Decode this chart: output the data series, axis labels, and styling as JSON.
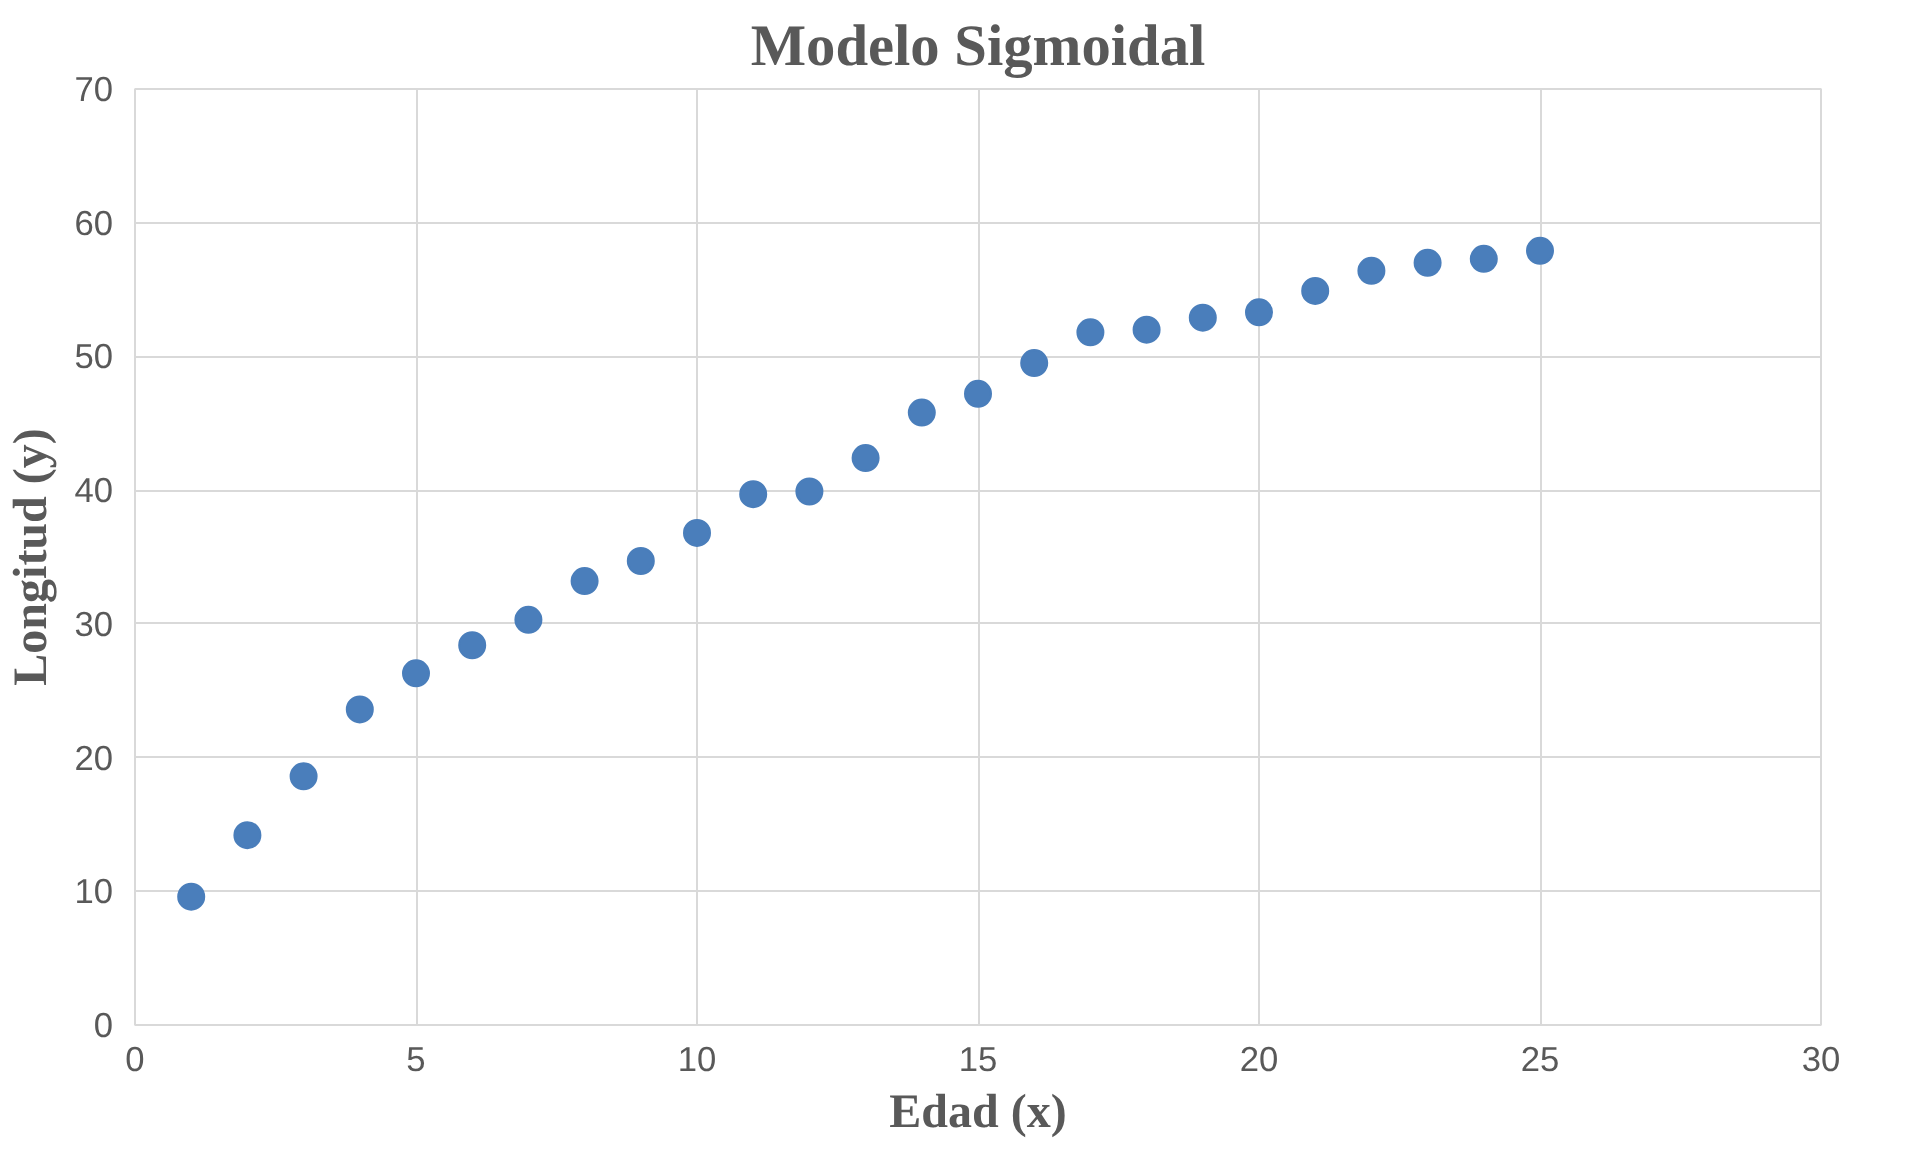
{
  "chart_data": {
    "type": "scatter",
    "title": "Modelo Sigmoidal",
    "xlabel": "Edad (x)",
    "ylabel": "Longitud (y)",
    "x": [
      1,
      2,
      3,
      4,
      5,
      6,
      7,
      8,
      9,
      10,
      11,
      12,
      13,
      14,
      15,
      16,
      17,
      18,
      19,
      20,
      21,
      22,
      23,
      24,
      25
    ],
    "series": [
      {
        "color": "#4a7ebb",
        "values": [
          9.6,
          14.2,
          18.6,
          23.6,
          26.3,
          28.4,
          30.3,
          33.2,
          34.7,
          36.8,
          39.7,
          39.9,
          42.4,
          45.8,
          47.2,
          49.5,
          51.8,
          52.0,
          52.9,
          53.3,
          54.9,
          56.4,
          57.0,
          57.3,
          57.9
        ]
      }
    ],
    "xlim": [
      0,
      30
    ],
    "xticks": [
      0,
      5,
      10,
      15,
      20,
      25,
      30
    ],
    "ylim": [
      0,
      70
    ],
    "yticks": [
      0,
      10,
      20,
      30,
      40,
      50,
      60,
      70
    ],
    "grid": true,
    "marker": "circle"
  }
}
